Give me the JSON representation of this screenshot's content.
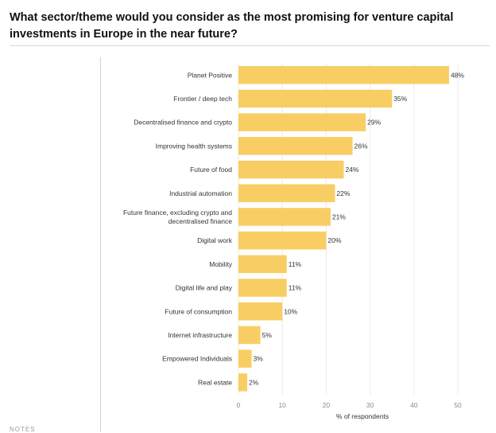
{
  "title": "What sector/theme would you consider as the most promising for venture capital investments in Europe in the near future?",
  "footer": "NOTES",
  "chart_data": {
    "type": "bar",
    "orientation": "horizontal",
    "title": "What sector/theme would you consider as the most promising for venture capital investments in Europe in the near future?",
    "xlabel": "% of respondents",
    "ylabel": "",
    "xlim": [
      0,
      50
    ],
    "xticks": [
      0,
      10,
      20,
      30,
      40,
      50
    ],
    "grid": true,
    "bar_color": "#f8ce64",
    "categories": [
      [
        "Planet Positive"
      ],
      [
        "Frontier / deep tech"
      ],
      [
        "Decentralised finance and crypto"
      ],
      [
        "Improving health systems"
      ],
      [
        "Future of food"
      ],
      [
        "Industrial automation"
      ],
      [
        "Future finance, excluding crypto and",
        "decentralised finance"
      ],
      [
        "Digital work"
      ],
      [
        "Mobility"
      ],
      [
        "Digital life and play"
      ],
      [
        "Future of consumption"
      ],
      [
        "Internet infrastructure"
      ],
      [
        "Empowered Individuals"
      ],
      [
        "Real estate"
      ]
    ],
    "values": [
      48,
      35,
      29,
      26,
      24,
      22,
      21,
      20,
      11,
      11,
      10,
      5,
      3,
      2
    ],
    "value_labels": [
      "48%",
      "35%",
      "29%",
      "26%",
      "24%",
      "22%",
      "21%",
      "20%",
      "11%",
      "11%",
      "10%",
      "5%",
      "3%",
      "2%"
    ]
  }
}
